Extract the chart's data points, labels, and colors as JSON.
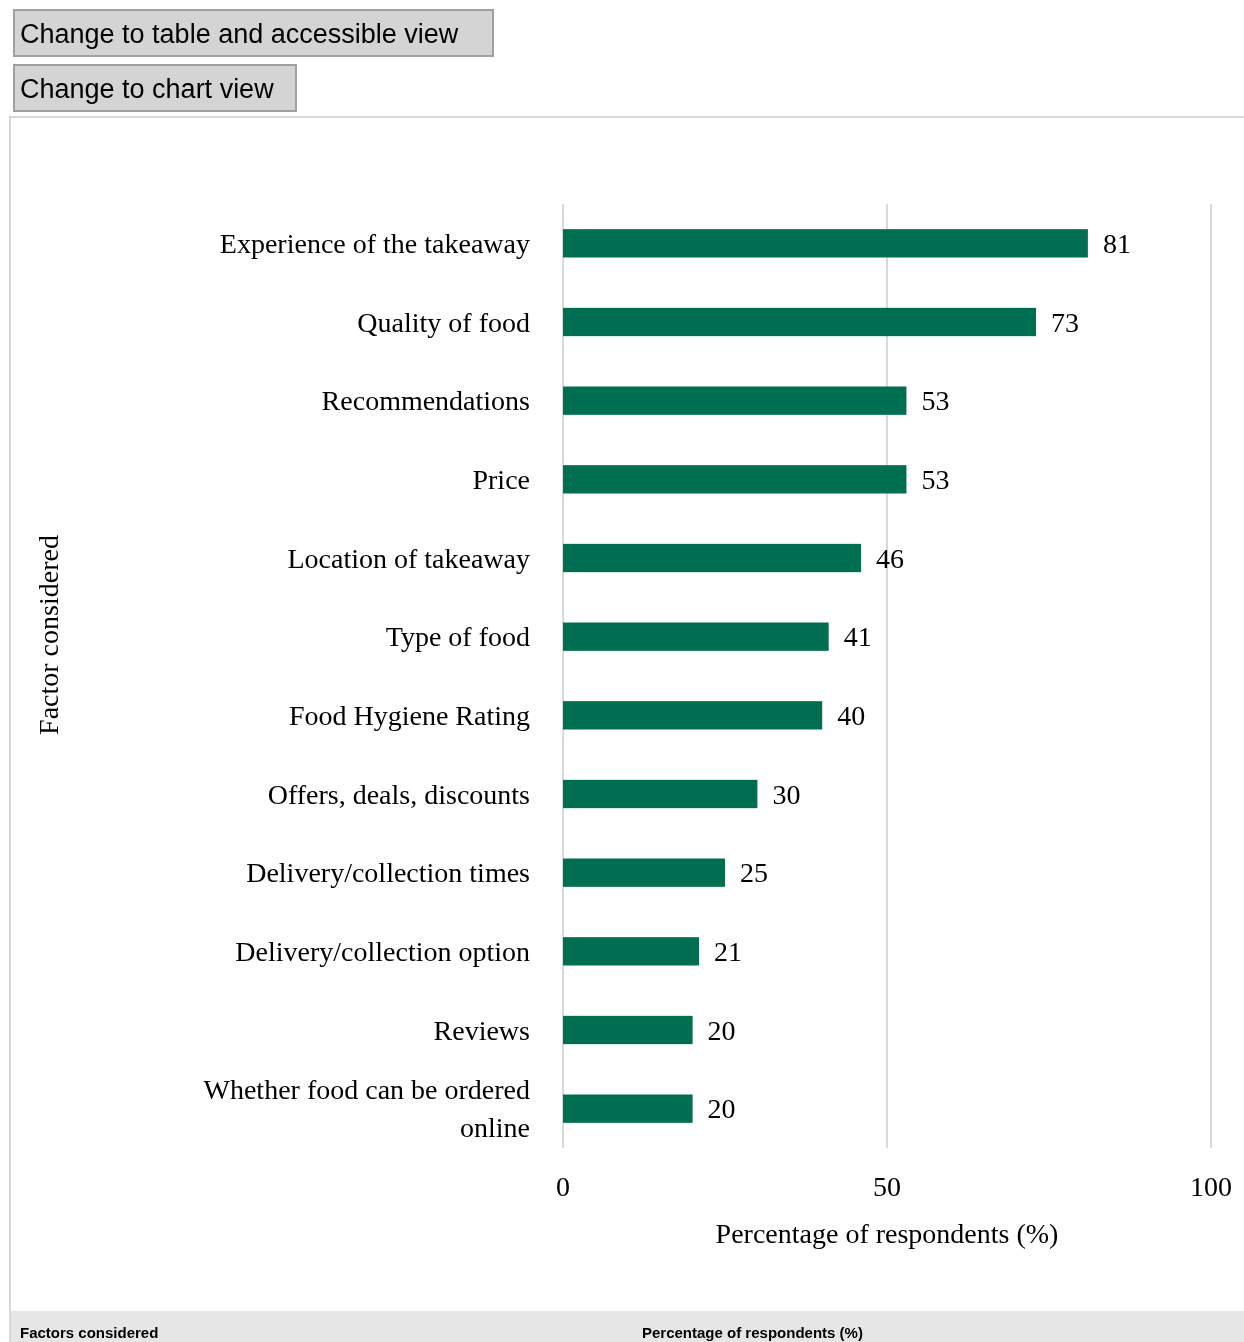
{
  "chart_data": {
    "type": "bar",
    "orientation": "horizontal",
    "xlabel": "Percentage of respondents (%)",
    "ylabel": "Factor considered",
    "categories": [
      "Experience of the takeaway",
      "Quality of food",
      "Recommendations",
      "Price",
      "Location of takeaway",
      "Type of food",
      "Food Hygiene Rating",
      "Offers, deals, discounts",
      "Delivery/collection times",
      "Delivery/collection option",
      "Reviews",
      "Whether food can be ordered online"
    ],
    "values": [
      81,
      73,
      53,
      53,
      46,
      41,
      40,
      30,
      25,
      21,
      20,
      20
    ],
    "color": "#006e51",
    "xlim": [
      0,
      100
    ],
    "xticks": [
      0,
      50,
      100
    ],
    "grid": "x",
    "data_labels": true,
    "annotations": [
      "Change to table and accessible view",
      "Change to chart view",
      "Factors considered",
      "Percentage of respondents (%)"
    ]
  }
}
